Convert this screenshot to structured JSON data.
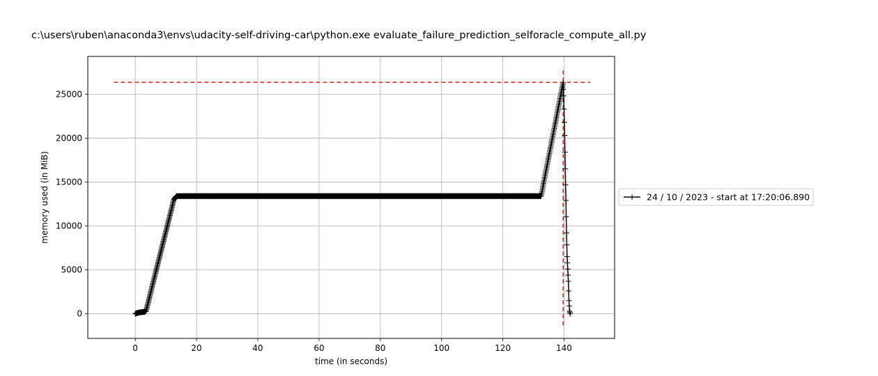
{
  "chart_data": {
    "type": "line",
    "title": "c:\\users\\ruben\\anaconda3\\envs\\udacity-self-driving-car\\python.exe evaluate_failure_prediction_selforacle_compute_all.py",
    "xlabel": "time (in seconds)",
    "ylabel": "memory used (in MiB)",
    "xlim": [
      -15.5,
      156.5
    ],
    "ylim": [
      -2800,
      29300
    ],
    "x_ticks": [
      0,
      20,
      40,
      60,
      80,
      100,
      120,
      140
    ],
    "y_ticks": [
      0,
      5000,
      10000,
      15000,
      20000,
      25000
    ],
    "grid": true,
    "legend_position": "outside right",
    "series": [
      {
        "name": "24 / 10 / 2023 - start at 17:20:06.890",
        "color": "#000000",
        "marker": "+",
        "keypoints": [
          {
            "x": 0,
            "y": 0
          },
          {
            "x": 0.5,
            "y": 80
          },
          {
            "x": 1,
            "y": 130
          },
          {
            "x": 1.5,
            "y": 160
          },
          {
            "x": 2,
            "y": 180
          },
          {
            "x": 2.5,
            "y": 200
          },
          {
            "x": 3,
            "y": 220
          },
          {
            "x": 3.5,
            "y": 300
          },
          {
            "x": 12.6,
            "y": 13000
          },
          {
            "x": 13.5,
            "y": 13400
          },
          {
            "x": 132.5,
            "y": 13400
          },
          {
            "x": 139.7,
            "y": 26300
          },
          {
            "x": 139.9,
            "y": 24800
          },
          {
            "x": 140.2,
            "y": 20300
          },
          {
            "x": 140.4,
            "y": 16500
          },
          {
            "x": 140.6,
            "y": 12900
          },
          {
            "x": 140.8,
            "y": 9200
          },
          {
            "x": 141.0,
            "y": 6500
          },
          {
            "x": 141.2,
            "y": 5100
          },
          {
            "x": 141.4,
            "y": 3700
          },
          {
            "x": 141.6,
            "y": 1500
          },
          {
            "x": 141.8,
            "y": 300
          },
          {
            "x": 142.0,
            "y": 0
          }
        ],
        "sample_interval": 0.1
      }
    ],
    "reference_lines": [
      {
        "orientation": "horizontal",
        "y": 26350,
        "x_from": -7.0,
        "x_to": 148.5,
        "color": "#d62728",
        "style": "dashed"
      },
      {
        "orientation": "vertical",
        "x": 139.7,
        "y_from": -1300,
        "y_to": 27700,
        "color": "#d62728",
        "style": "dashed"
      }
    ]
  }
}
